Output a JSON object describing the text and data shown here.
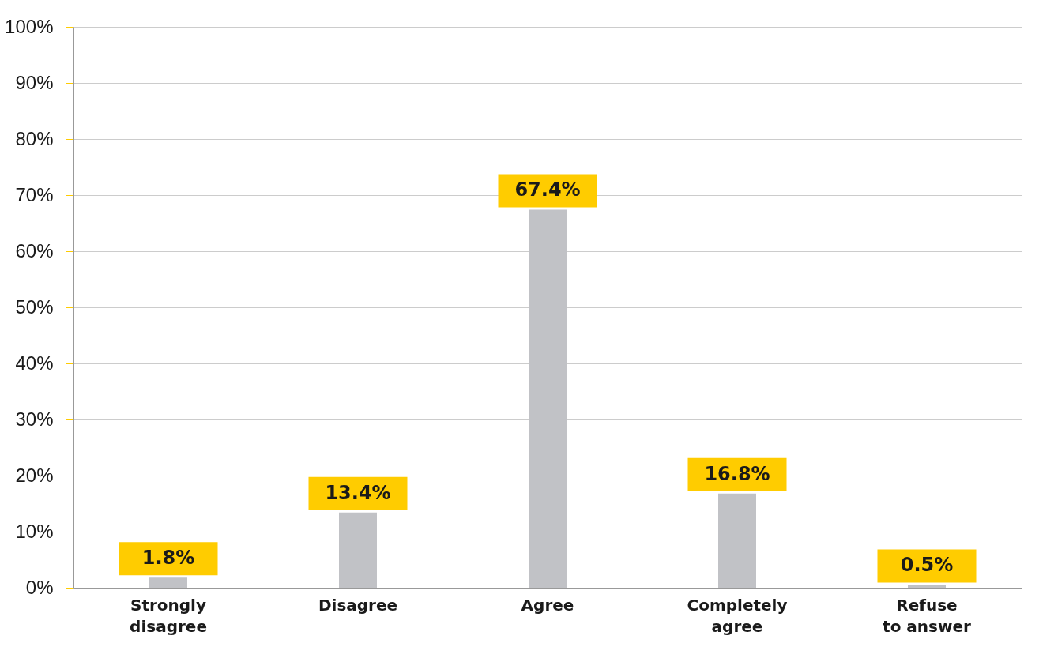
{
  "chart_data": {
    "type": "bar",
    "categories": [
      "Strongly disagree",
      "Disagree",
      "Agree",
      "Completely agree",
      "Refuse to answer"
    ],
    "values": [
      1.8,
      13.4,
      67.4,
      16.8,
      0.5
    ],
    "color": "#c1c2c6",
    "value_labels": [
      "1.8%",
      "13.4%",
      "67.4%",
      "16.8%",
      "0.5%"
    ],
    "ylim": [
      0,
      100
    ],
    "yticks": [
      {
        "value": 0,
        "label": "0%"
      },
      {
        "value": 10,
        "label": "10%"
      },
      {
        "value": 20,
        "label": "20%"
      },
      {
        "value": 30,
        "label": "30%"
      },
      {
        "value": 40,
        "label": "40%"
      },
      {
        "value": 50,
        "label": "50%"
      },
      {
        "value": 60,
        "label": "60%"
      },
      {
        "value": 70,
        "label": "70%"
      },
      {
        "value": 80,
        "label": "80%"
      },
      {
        "value": 90,
        "label": "90%"
      },
      {
        "value": 100,
        "label": "100%"
      }
    ],
    "grid": "y"
  }
}
